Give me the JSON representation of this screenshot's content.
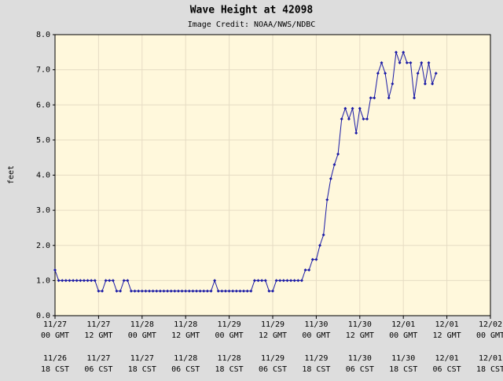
{
  "chart_data": {
    "type": "line",
    "title": "Wave Height at 42098",
    "subtitle": "Image Credit: NOAA/NWS/NDBC",
    "y_label": "feet",
    "xlim": [
      0,
      120
    ],
    "xticks": [
      {
        "value": 0,
        "label": [
          "11/27",
          "00 GMT"
        ]
      },
      {
        "value": 12,
        "label": [
          "11/27",
          "12 GMT"
        ]
      },
      {
        "value": 24,
        "label": [
          "11/28",
          "00 GMT"
        ]
      },
      {
        "value": 36,
        "label": [
          "11/28",
          "12 GMT"
        ]
      },
      {
        "value": 48,
        "label": [
          "11/29",
          "00 GMT"
        ]
      },
      {
        "value": 60,
        "label": [
          "11/29",
          "12 GMT"
        ]
      },
      {
        "value": 72,
        "label": [
          "11/30",
          "00 GMT"
        ]
      },
      {
        "value": 84,
        "label": [
          "11/30",
          "12 GMT"
        ]
      },
      {
        "value": 96,
        "label": [
          "12/01",
          "00 GMT"
        ]
      },
      {
        "value": 108,
        "label": [
          "12/01",
          "12 GMT"
        ]
      },
      {
        "value": 120,
        "label": [
          "12/02",
          "00 GMT"
        ]
      }
    ],
    "local_time_labels": [
      [
        "11/26",
        "18 CST"
      ],
      [
        "11/27",
        "06 CST"
      ],
      [
        "11/27",
        "18 CST"
      ],
      [
        "11/28",
        "06 CST"
      ],
      [
        "11/28",
        "18 CST"
      ],
      [
        "11/29",
        "06 CST"
      ],
      [
        "11/29",
        "18 CST"
      ],
      [
        "11/30",
        "06 CST"
      ],
      [
        "11/30",
        "18 CST"
      ],
      [
        "12/01",
        "06 CST"
      ],
      [
        "12/01",
        "18 CST"
      ]
    ],
    "ylim": [
      0,
      8
    ],
    "yticks": [
      {
        "value": 0,
        "label": "0.0"
      },
      {
        "value": 1,
        "label": "1.0"
      },
      {
        "value": 2,
        "label": "2.0"
      },
      {
        "value": 3,
        "label": "3.0"
      },
      {
        "value": 4,
        "label": "4.0"
      },
      {
        "value": 5,
        "label": "5.0"
      },
      {
        "value": 6,
        "label": "6.0"
      },
      {
        "value": 7,
        "label": "7.0"
      },
      {
        "value": 8,
        "label": "8.0"
      }
    ],
    "grid": true,
    "color": "#1a1aa6",
    "x": [
      0,
      1,
      2,
      3,
      4,
      5,
      6,
      7,
      8,
      9,
      10,
      11,
      12,
      13,
      14,
      15,
      16,
      17,
      18,
      19,
      20,
      21,
      22,
      23,
      24,
      25,
      26,
      27,
      28,
      29,
      30,
      31,
      32,
      33,
      34,
      35,
      36,
      37,
      38,
      39,
      40,
      41,
      42,
      43,
      44,
      45,
      46,
      47,
      48,
      49,
      50,
      51,
      52,
      53,
      54,
      55,
      56,
      57,
      58,
      59,
      60,
      61,
      62,
      63,
      64,
      65,
      66,
      67,
      68,
      69,
      70,
      71,
      72,
      73,
      74,
      75,
      76,
      77,
      78,
      79,
      80,
      81,
      82,
      83,
      84,
      85,
      86,
      87,
      88,
      89,
      90,
      91,
      92,
      93,
      94,
      95,
      96,
      97,
      98,
      99,
      100,
      101,
      102,
      103,
      104,
      105
    ],
    "values": [
      1.3,
      1.0,
      1.0,
      1.0,
      1.0,
      1.0,
      1.0,
      1.0,
      1.0,
      1.0,
      1.0,
      1.0,
      0.7,
      0.7,
      1.0,
      1.0,
      1.0,
      0.7,
      0.7,
      1.0,
      1.0,
      0.7,
      0.7,
      0.7,
      0.7,
      0.7,
      0.7,
      0.7,
      0.7,
      0.7,
      0.7,
      0.7,
      0.7,
      0.7,
      0.7,
      0.7,
      0.7,
      0.7,
      0.7,
      0.7,
      0.7,
      0.7,
      0.7,
      0.7,
      1.0,
      0.7,
      0.7,
      0.7,
      0.7,
      0.7,
      0.7,
      0.7,
      0.7,
      0.7,
      0.7,
      1.0,
      1.0,
      1.0,
      1.0,
      0.7,
      0.7,
      1.0,
      1.0,
      1.0,
      1.0,
      1.0,
      1.0,
      1.0,
      1.0,
      1.3,
      1.3,
      1.6,
      1.6,
      2.0,
      2.3,
      3.3,
      3.9,
      4.3,
      4.6,
      5.6,
      5.9,
      5.6,
      5.9,
      5.2,
      5.9,
      5.6,
      5.6,
      6.2,
      6.2,
      6.9,
      7.2,
      6.9,
      6.2,
      6.6,
      7.5,
      7.2,
      7.5,
      7.2,
      7.2,
      6.2,
      6.9,
      7.2,
      6.6,
      7.2,
      6.6,
      6.9
    ]
  }
}
